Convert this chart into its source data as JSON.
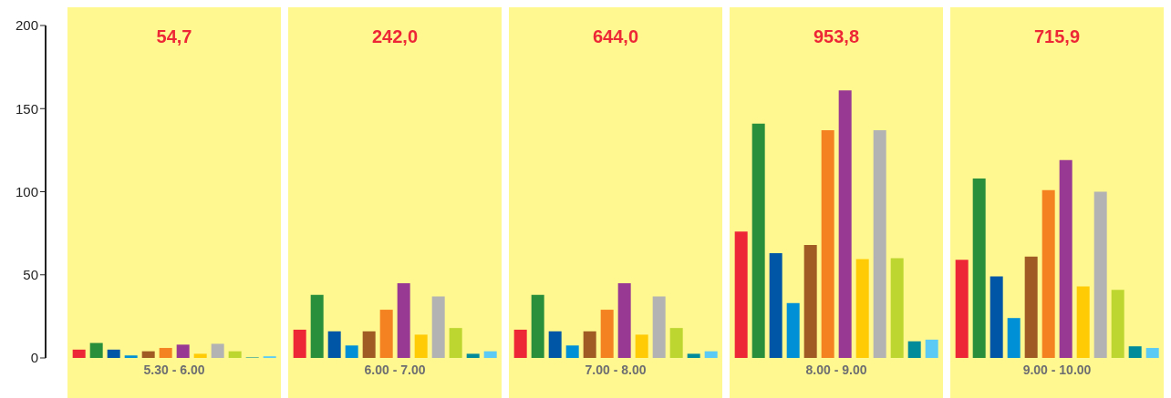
{
  "chart_data": {
    "type": "bar",
    "categories": [
      "5.30 - 6.00",
      "6.00 - 7.00",
      "7.00 - 8.00",
      "8.00 - 9.00",
      "9.00 - 10.00"
    ],
    "series": [
      {
        "color": "#ee2737",
        "values": [
          5,
          17,
          17,
          76,
          59
        ]
      },
      {
        "color": "#2a8f3b",
        "values": [
          9,
          38,
          38,
          141,
          108
        ]
      },
      {
        "color": "#0056a6",
        "values": [
          5,
          16,
          16,
          63,
          49
        ]
      },
      {
        "color": "#0090d6",
        "values": [
          1.5,
          7.5,
          7.5,
          33,
          24
        ]
      },
      {
        "color": "#a05a24",
        "values": [
          4,
          16,
          16,
          68,
          61
        ]
      },
      {
        "color": "#f58220",
        "values": [
          6,
          29,
          29,
          137,
          101
        ]
      },
      {
        "color": "#983a93",
        "values": [
          8,
          45,
          45,
          161,
          119
        ]
      },
      {
        "color": "#ffcb05",
        "values": [
          2.5,
          14,
          14,
          59.5,
          43
        ]
      },
      {
        "color": "#b3b3b3",
        "values": [
          8.5,
          37,
          37,
          137,
          100
        ]
      },
      {
        "color": "#bed630",
        "values": [
          4,
          18,
          18,
          60,
          41
        ]
      },
      {
        "color": "#008b9b",
        "values": [
          0.3,
          2.5,
          2.5,
          10,
          7
        ]
      },
      {
        "color": "#5bcbf5",
        "values": [
          1,
          4,
          4,
          11,
          6
        ]
      }
    ],
    "annotations": [
      "54,7",
      "242,0",
      "644,0",
      "953,8",
      "715,9"
    ],
    "bands": [
      {
        "axis": "x",
        "from": "5.30 - 6.00",
        "to": "5.30 - 6.00",
        "color": "#fff78f"
      },
      {
        "axis": "x",
        "from": "6.00 - 7.00",
        "to": "6.00 - 7.00",
        "color": "#fff78f"
      },
      {
        "axis": "x",
        "from": "7.00 - 8.00",
        "to": "7.00 - 8.00",
        "color": "#fff78f"
      },
      {
        "axis": "x",
        "from": "8.00 - 9.00",
        "to": "8.00 - 9.00",
        "color": "#fff78f"
      },
      {
        "axis": "x",
        "from": "9.00 - 10.00",
        "to": "9.00 - 10.00",
        "color": "#fff78f"
      }
    ],
    "ylim": [
      0,
      200
    ],
    "yticks": [
      0,
      50,
      100,
      150,
      200
    ]
  }
}
